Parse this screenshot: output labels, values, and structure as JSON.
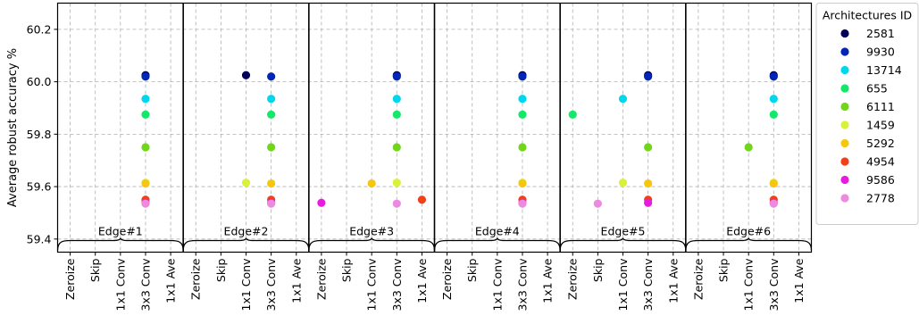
{
  "chart_data": {
    "type": "scatter",
    "ylabel": "Average robust accuracy %",
    "ylim": [
      59.35,
      60.3
    ],
    "yticks": [
      "59.4",
      "59.6",
      "59.8",
      "60.0",
      "60.2"
    ],
    "categories": [
      "Zeroize",
      "Skip",
      "1x1 Conv",
      "3x3 Conv",
      "1x1 Ave"
    ],
    "groups": [
      "Edge#1",
      "Edge#2",
      "Edge#3",
      "Edge#4",
      "Edge#5",
      "Edge#6"
    ],
    "grid": true,
    "legend": {
      "title": "Architectures ID",
      "placement": "right outside"
    },
    "series": [
      {
        "name": "2581",
        "color": "#00005a",
        "value": 60.025,
        "ops": [
          "3x3 Conv",
          "1x1 Conv",
          "3x3 Conv",
          "3x3 Conv",
          "3x3 Conv",
          "3x3 Conv"
        ]
      },
      {
        "name": "9930",
        "color": "#0026b3",
        "value": 60.02,
        "ops": [
          "3x3 Conv",
          "3x3 Conv",
          "3x3 Conv",
          "3x3 Conv",
          "3x3 Conv",
          "3x3 Conv"
        ]
      },
      {
        "name": "13714",
        "color": "#00d6ee",
        "value": 59.935,
        "ops": [
          "3x3 Conv",
          "3x3 Conv",
          "3x3 Conv",
          "3x3 Conv",
          "1x1 Conv",
          "3x3 Conv"
        ]
      },
      {
        "name": "655",
        "color": "#13e86a",
        "value": 59.875,
        "ops": [
          "3x3 Conv",
          "3x3 Conv",
          "3x3 Conv",
          "3x3 Conv",
          "Zeroize",
          "3x3 Conv"
        ]
      },
      {
        "name": "6111",
        "color": "#6fd61a",
        "value": 59.75,
        "ops": [
          "3x3 Conv",
          "3x3 Conv",
          "3x3 Conv",
          "3x3 Conv",
          "3x3 Conv",
          "1x1 Conv"
        ]
      },
      {
        "name": "1459",
        "color": "#d8f23a",
        "value": 59.615,
        "ops": [
          "3x3 Conv",
          "1x1 Conv",
          "3x3 Conv",
          "3x3 Conv",
          "1x1 Conv",
          "3x3 Conv"
        ]
      },
      {
        "name": "5292",
        "color": "#f7c60e",
        "value": 59.612,
        "ops": [
          "3x3 Conv",
          "3x3 Conv",
          "1x1 Conv",
          "3x3 Conv",
          "3x3 Conv",
          "3x3 Conv"
        ]
      },
      {
        "name": "4954",
        "color": "#f2401a",
        "value": 59.55,
        "ops": [
          "3x3 Conv",
          "3x3 Conv",
          "1x1 Ave",
          "3x3 Conv",
          "3x3 Conv",
          "3x3 Conv"
        ]
      },
      {
        "name": "9586",
        "color": "#e81ce0",
        "value": 59.538,
        "ops": [
          "3x3 Conv",
          "3x3 Conv",
          "Zeroize",
          "3x3 Conv",
          "3x3 Conv",
          "3x3 Conv"
        ]
      },
      {
        "name": "2778",
        "color": "#ec8ae0",
        "value": 59.535,
        "ops": [
          "3x3 Conv",
          "3x3 Conv",
          "3x3 Conv",
          "3x3 Conv",
          "Skip",
          "3x3 Conv"
        ]
      }
    ]
  }
}
